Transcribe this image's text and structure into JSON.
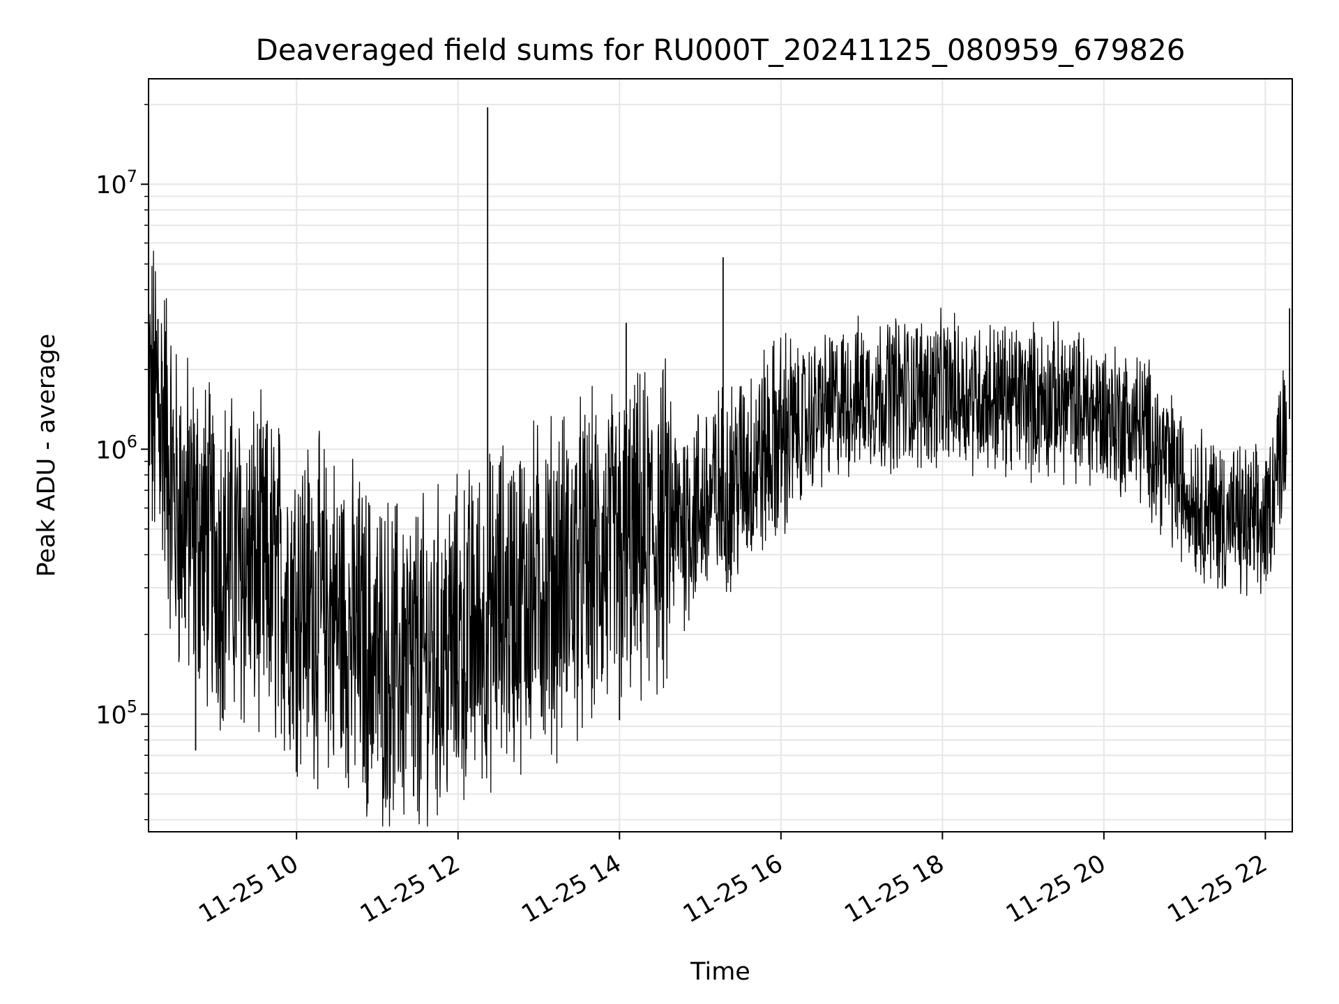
{
  "chart_data": {
    "type": "line",
    "title": "Deaveraged field sums for RU000T_20241125_080959_679826",
    "xlabel": "Time",
    "ylabel": "Peak ADU - average",
    "yscale": "log",
    "ylim": [
      36000,
      25000000
    ],
    "xlim": [
      "2024-11-25 08:10",
      "2024-11-25 22:20"
    ],
    "grid": true,
    "line_color": "#000000",
    "x_ticks": [
      {
        "value": "2024-11-25 10:00",
        "label": "11-25 10"
      },
      {
        "value": "2024-11-25 12:00",
        "label": "11-25 12"
      },
      {
        "value": "2024-11-25 14:00",
        "label": "11-25 14"
      },
      {
        "value": "2024-11-25 16:00",
        "label": "11-25 16"
      },
      {
        "value": "2024-11-25 18:00",
        "label": "11-25 18"
      },
      {
        "value": "2024-11-25 20:00",
        "label": "11-25 20"
      },
      {
        "value": "2024-11-25 22:00",
        "label": "11-25 22"
      }
    ],
    "y_ticks": [
      {
        "value": 100000,
        "base": "10",
        "exp": "5"
      },
      {
        "value": 1000000,
        "base": "10",
        "exp": "6"
      },
      {
        "value": 10000000,
        "base": "10",
        "exp": "7"
      }
    ],
    "series": [
      {
        "x": [
          "2024-11-25 08:10",
          "2024-11-25 08:20",
          "2024-11-25 08:30",
          "2024-11-25 09:00",
          "2024-11-25 09:30",
          "2024-11-25 10:00",
          "2024-11-25 10:30",
          "2024-11-25 11:00",
          "2024-11-25 11:30",
          "2024-11-25 12:00",
          "2024-11-25 12:30",
          "2024-11-25 13:00",
          "2024-11-25 13:30",
          "2024-11-25 14:00",
          "2024-11-25 14:30",
          "2024-11-25 15:00",
          "2024-11-25 15:30",
          "2024-11-25 16:00",
          "2024-11-25 16:30",
          "2024-11-25 17:00",
          "2024-11-25 17:30",
          "2024-11-25 18:00",
          "2024-11-25 18:30",
          "2024-11-25 19:00",
          "2024-11-25 19:30",
          "2024-11-25 20:00",
          "2024-11-25 20:30",
          "2024-11-25 21:00",
          "2024-11-25 21:30",
          "2024-11-25 22:00",
          "2024-11-25 22:15"
        ],
        "y": [
          1500000,
          1400000,
          600000,
          400000,
          350000,
          280000,
          230000,
          160000,
          150000,
          180000,
          250000,
          300000,
          350000,
          400000,
          480000,
          600000,
          800000,
          1100000,
          1400000,
          1600000,
          1650000,
          1650000,
          1600000,
          1550000,
          1500000,
          1350000,
          1200000,
          700000,
          550000,
          500000,
          1300000
        ]
      }
    ],
    "spikes": [
      {
        "x": "2024-11-25 08:17",
        "y": 3100000
      },
      {
        "x": "2024-11-25 12:22",
        "y": 19500000
      },
      {
        "x": "2024-11-25 14:05",
        "y": 3000000
      },
      {
        "x": "2024-11-25 15:17",
        "y": 5300000
      },
      {
        "x": "2024-11-25 22:18",
        "y": 3400000
      }
    ],
    "dips": [
      {
        "x": "2024-11-25 10:53",
        "y": 46000
      },
      {
        "x": "2024-11-25 11:27",
        "y": 49000
      },
      {
        "x": "2024-11-25 14:00",
        "y": 95000
      },
      {
        "x": "2024-11-25 08:45",
        "y": 73000
      }
    ]
  }
}
